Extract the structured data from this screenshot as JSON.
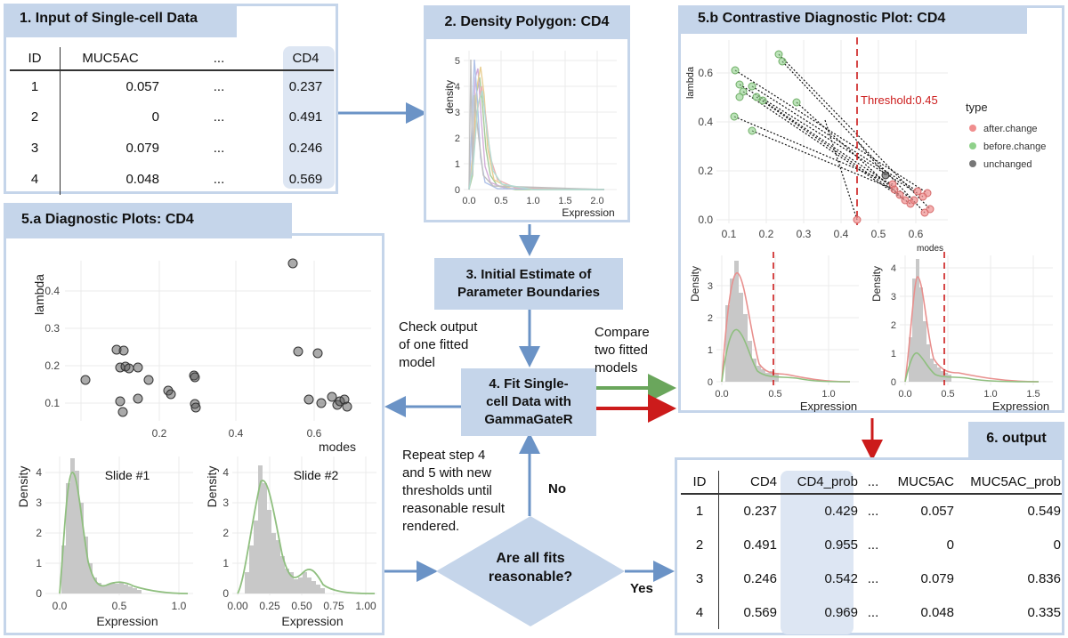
{
  "colors": {
    "panel_border": "#c5d5ea",
    "title_fill": "#c5d5ea",
    "arrow_blue": "#6b93c6",
    "arrow_green": "#6aa65c",
    "arrow_red": "#cc1b1b",
    "highlight": "#dde6f3"
  },
  "panel1": {
    "title": "1. Input of Single-cell Data",
    "headers": [
      "ID",
      "MUC5AC",
      "...",
      "CD4"
    ],
    "rows": [
      [
        "1",
        "0.057",
        "...",
        "0.237"
      ],
      [
        "2",
        "0",
        "...",
        "0.491"
      ],
      [
        "3",
        "0.079",
        "...",
        "0.246"
      ],
      [
        "4",
        "0.048",
        "...",
        "0.569"
      ]
    ]
  },
  "panel2": {
    "title": "2. Density Polygon: CD4",
    "ylabel": "density",
    "xlabel": "Expression",
    "xticks": [
      "0.0",
      "0.5",
      "1.0",
      "1.5",
      "2.0"
    ],
    "yticks": [
      "0",
      "1",
      "2",
      "3",
      "4",
      "5"
    ]
  },
  "step3": {
    "line1": "3. Initial Estimate of",
    "line2": "Parameter Boundaries"
  },
  "step4": {
    "line1": "4. Fit Single-",
    "line2": "cell Data with",
    "line3": "GammaGateR"
  },
  "decision": {
    "line1": "Are all fits",
    "line2": "reasonable?"
  },
  "notes": {
    "check": [
      "Check output",
      "of one fitted",
      "model"
    ],
    "compare": [
      "Compare",
      "two fitted",
      "models"
    ],
    "repeat": [
      "Repeat step 4",
      "and 5 with new",
      "thresholds until",
      "reasonable result",
      "rendered."
    ],
    "no": "No",
    "yes": "Yes"
  },
  "panel5a": {
    "title": "5.a Diagnostic Plots: CD4",
    "scatter": {
      "ylabel": "lambda",
      "xlabel": "modes",
      "xticks": [
        "0.2",
        "0.4",
        "0.6"
      ],
      "yticks": [
        "0.1",
        "0.2",
        "0.3",
        "0.4"
      ]
    },
    "slide1": {
      "label": "Slide #1",
      "ylabel": "Density",
      "xlabel": "Expression",
      "xticks": [
        "0.0",
        "0.5",
        "1.0"
      ],
      "yticks": [
        "0",
        "1",
        "2",
        "3",
        "4"
      ]
    },
    "slide2": {
      "label": "Slide #2",
      "ylabel": "Density",
      "xlabel": "Expression",
      "xticks": [
        "0.00",
        "0.25",
        "0.50",
        "0.75",
        "1.00"
      ],
      "yticks": [
        "0",
        "1",
        "2",
        "3",
        "4"
      ]
    }
  },
  "panel5b": {
    "title": "5.b Contrastive Diagnostic Plot: CD4",
    "ylabel": "lambda",
    "xlabel": "modes",
    "threshold": "Threshold:0.45",
    "xticks": [
      "0.1",
      "0.2",
      "0.3",
      "0.4",
      "0.5",
      "0.6"
    ],
    "yticks": [
      "0.0",
      "0.2",
      "0.4",
      "0.6"
    ],
    "legend_title": "type",
    "legend": [
      "after.change",
      "before.change",
      "unchanged"
    ],
    "left": {
      "ylabel": "Density",
      "xlabel": "Expression",
      "xticks": [
        "0.0",
        "0.5",
        "1.0"
      ],
      "yticks": [
        "0",
        "1",
        "2",
        "3"
      ]
    },
    "right": {
      "ylabel": "Density",
      "xlabel": "Expression",
      "xticks": [
        "0.0",
        "0.5",
        "1.0",
        "1.5"
      ],
      "yticks": [
        "0",
        "1",
        "2",
        "3",
        "4"
      ]
    }
  },
  "panel6": {
    "title": "6. output",
    "headers": [
      "ID",
      "CD4",
      "CD4_prob",
      "...",
      "MUC5AC",
      "MUC5AC_prob"
    ],
    "rows": [
      [
        "1",
        "0.237",
        "0.429",
        "...",
        "0.057",
        "0.549"
      ],
      [
        "2",
        "0.491",
        "0.955",
        "...",
        "0",
        "0"
      ],
      [
        "3",
        "0.246",
        "0.542",
        "...",
        "0.079",
        "0.836"
      ],
      [
        "4",
        "0.569",
        "0.969",
        "...",
        "0.048",
        "0.335"
      ]
    ]
  }
}
